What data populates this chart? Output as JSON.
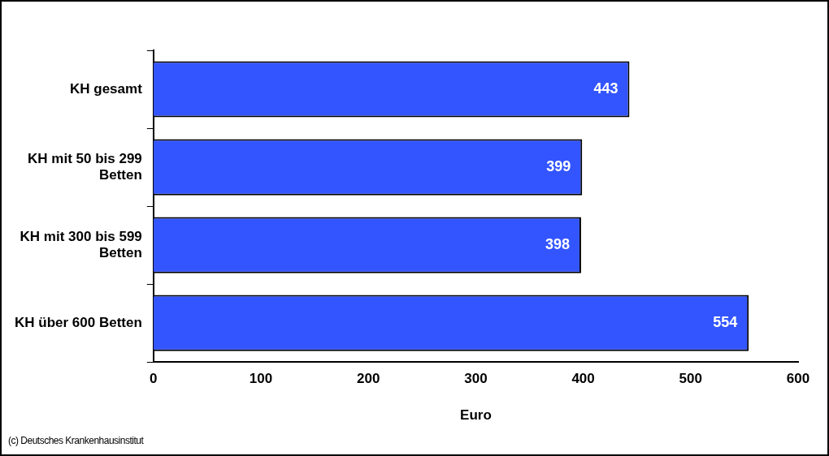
{
  "chart_data": {
    "type": "bar",
    "orientation": "horizontal",
    "categories": [
      "KH gesamt",
      "KH mit 50 bis 299 Betten",
      "KH mit 300 bis 599 Betten",
      "KH über 600 Betten"
    ],
    "values": [
      443,
      399,
      398,
      554
    ],
    "color": "#3355ff",
    "xlabel": "Euro",
    "xlim": [
      0,
      600
    ],
    "xticks": [
      0,
      100,
      200,
      300,
      400,
      500,
      600
    ],
    "grid": false,
    "legend": false,
    "data_labels": true,
    "annotations": [
      "(c) Deutsches Krankenhausinstitut"
    ]
  }
}
